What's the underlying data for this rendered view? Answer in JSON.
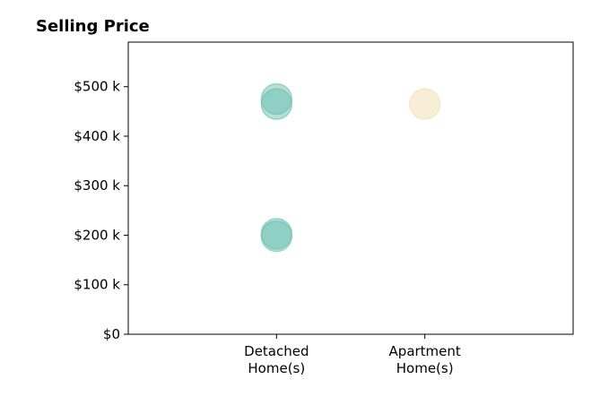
{
  "chart_data": {
    "type": "scatter",
    "title": "Selling Price",
    "xlabel": "",
    "ylabel": "",
    "categories": [
      "Detached\nHome(s)",
      "Apartment\nHome(s)"
    ],
    "y_ticks": [
      0,
      100000,
      200000,
      300000,
      400000,
      500000
    ],
    "y_tick_labels": [
      "$0",
      "$100 k",
      "$200 k",
      "$300 k",
      "$400 k",
      "$500 k"
    ],
    "ylim": [
      0,
      590000
    ],
    "xlim": [
      -1,
      2
    ],
    "grid": false,
    "legend": "none",
    "series": [
      {
        "category": "Detached\nHome(s)",
        "color": "#6cbfb0",
        "values": [
          475000,
          465000,
          203000,
          198000
        ]
      },
      {
        "category": "Apartment\nHome(s)",
        "color": "#f2ddb0",
        "values": [
          465000
        ]
      }
    ]
  }
}
